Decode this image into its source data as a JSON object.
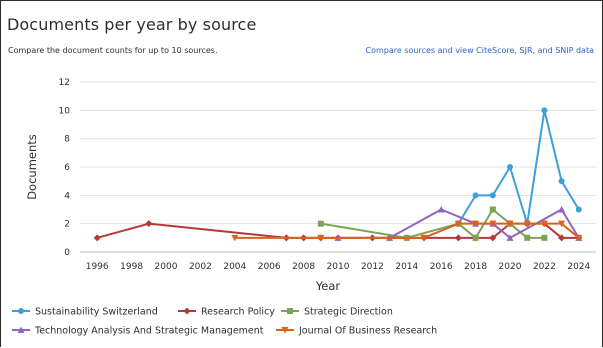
{
  "header": {
    "title": "Documents per year by source",
    "subtitle": "Compare the document counts for up to 10 sources.",
    "compare_link": "Compare sources and view CiteScore, SJR, and SNIP data"
  },
  "chart_data": {
    "type": "line",
    "title": "Documents per year by source",
    "xlabel": "Year",
    "ylabel": "Documents",
    "xlim": [
      1995,
      2025
    ],
    "ylim": [
      0,
      12
    ],
    "x_ticks": [
      1996,
      1998,
      2000,
      2002,
      2004,
      2006,
      2008,
      2010,
      2012,
      2014,
      2016,
      2018,
      2020,
      2022,
      2024
    ],
    "y_ticks": [
      0,
      2,
      4,
      6,
      8,
      10,
      12
    ],
    "grid": true,
    "legend_position": "bottom",
    "series": [
      {
        "name": "Sustainability Switzerland",
        "color": "#3f9fd8",
        "marker": "circle",
        "x": [
          2017,
          2018,
          2019,
          2020,
          2021,
          2022,
          2023,
          2024
        ],
        "y": [
          2,
          4,
          4,
          6,
          2,
          10,
          5,
          3
        ]
      },
      {
        "name": "Research Policy",
        "color": "#b5383a",
        "marker": "diamond",
        "x": [
          1996,
          1999,
          2007,
          2008,
          2009,
          2010,
          2012,
          2013,
          2014,
          2015,
          2017,
          2018,
          2019,
          2020,
          2021,
          2022,
          2023,
          2024
        ],
        "y": [
          1,
          2,
          1,
          1,
          1,
          1,
          1,
          1,
          1,
          1,
          1,
          1,
          1,
          2,
          2,
          2,
          1,
          1
        ]
      },
      {
        "name": "Strategic Direction",
        "color": "#7fa356",
        "marker": "square",
        "x": [
          2009,
          2014,
          2017,
          2018,
          2019,
          2020,
          2021,
          2022
        ],
        "y": [
          2,
          1,
          2,
          1,
          3,
          2,
          1,
          1
        ]
      },
      {
        "name": "Technology Analysis And Strategic Management",
        "color": "#9363c2",
        "marker": "triangle-up",
        "x": [
          2010,
          2013,
          2016,
          2018,
          2019,
          2020,
          2023,
          2024
        ],
        "y": [
          1,
          1,
          3,
          2,
          2,
          1,
          3,
          1
        ]
      },
      {
        "name": "Journal Of Business Research",
        "color": "#d9631e",
        "marker": "triangle-down",
        "x": [
          2004,
          2009,
          2015,
          2017,
          2018,
          2019,
          2020,
          2021,
          2022,
          2023,
          2024
        ],
        "y": [
          1,
          1,
          1,
          2,
          2,
          2,
          2,
          2,
          2,
          2,
          1
        ]
      }
    ]
  }
}
